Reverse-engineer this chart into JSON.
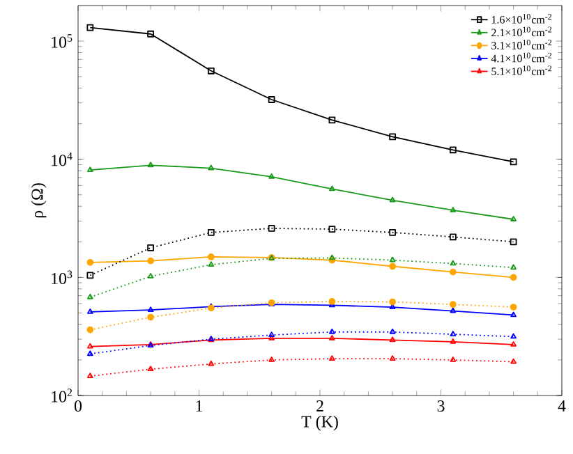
{
  "chart_data": {
    "type": "line",
    "xlabel": "T (K)",
    "ylabel": "ρ (Ω)",
    "log": "y",
    "x": [
      0.1,
      0.6,
      1.1,
      1.6,
      2.1,
      2.6,
      3.1,
      3.6
    ],
    "xlim": [
      0,
      4
    ],
    "xticks": [
      0,
      1,
      2,
      3,
      4
    ],
    "ylim": [
      100,
      200000
    ],
    "yticks": [
      {
        "value": 100,
        "label": "10$^{2}$"
      },
      {
        "value": 1000,
        "label": "10$^{3}$"
      },
      {
        "value": 10000,
        "label": "10$^{4}$"
      },
      {
        "value": 100000,
        "label": "10$^{5}$"
      }
    ],
    "legend": "top right",
    "grid": false,
    "series": [
      {
        "name": "1.6×10$^{10}$cm$^{-2}$",
        "color": "#000000",
        "marker": "square",
        "line_style": "solid",
        "values": [
          130000,
          115000,
          56000,
          32000,
          21500,
          15500,
          12000,
          9500
        ]
      },
      {
        "name": "2.1×10$^{10}$cm$^{-2}$",
        "color": "#1a9a1a",
        "marker": "triangle",
        "line_style": "solid",
        "values": [
          8100,
          8900,
          8400,
          7100,
          5600,
          4500,
          3700,
          3100
        ]
      },
      {
        "name": "3.1×10$^{10}$cm$^{-2}$",
        "color": "#ffa500",
        "marker": "circle",
        "line_style": "solid",
        "values": [
          1340,
          1380,
          1490,
          1470,
          1400,
          1240,
          1110,
          1000
        ]
      },
      {
        "name": "4.1×10$^{10}$cm$^{-2}$",
        "color": "#0000ff",
        "marker": "triangle",
        "line_style": "solid",
        "values": [
          510,
          530,
          565,
          590,
          580,
          560,
          520,
          480
        ]
      },
      {
        "name": "5.1×10$^{10}$cm$^{-2}$",
        "color": "#ff0000",
        "marker": "triangle",
        "line_style": "solid",
        "values": [
          260,
          270,
          295,
          305,
          305,
          295,
          285,
          270
        ]
      },
      {
        "color": "#000000",
        "marker": "square",
        "line_style": "dotted",
        "values": [
          1040,
          1780,
          2400,
          2600,
          2560,
          2400,
          2200,
          2000
        ]
      },
      {
        "color": "#1a9a1a",
        "marker": "triangle",
        "line_style": "dotted",
        "values": [
          680,
          1020,
          1280,
          1450,
          1460,
          1400,
          1310,
          1210
        ]
      },
      {
        "color": "#ffa500",
        "marker": "circle",
        "line_style": "dotted",
        "values": [
          360,
          460,
          550,
          610,
          625,
          620,
          590,
          560
        ]
      },
      {
        "color": "#0000ff",
        "marker": "triangle",
        "line_style": "dotted",
        "values": [
          225,
          265,
          300,
          325,
          345,
          345,
          330,
          315
        ]
      },
      {
        "color": "#ff0000",
        "marker": "triangle",
        "line_style": "dotted",
        "values": [
          146,
          167,
          185,
          200,
          205,
          205,
          200,
          193
        ]
      }
    ]
  }
}
